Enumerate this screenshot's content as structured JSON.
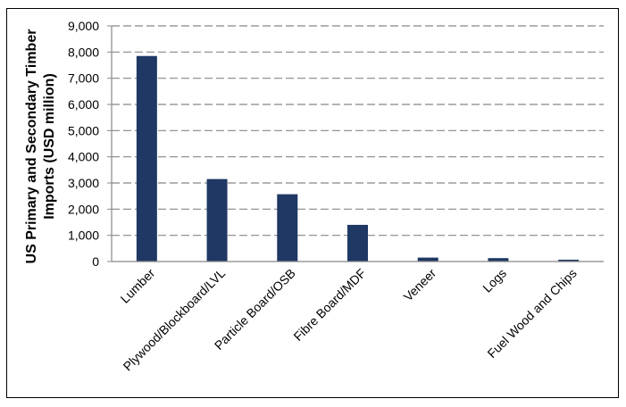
{
  "chart_data": {
    "type": "bar",
    "title": "",
    "xlabel": "",
    "ylabel_line1": "US Primary and Secondary Timber",
    "ylabel_line2": "Imports (USD million)",
    "categories": [
      "Lumber",
      "Plywood/Blockboard/LVL",
      "Particle Board/OSB",
      "Fibre Board/MDF",
      "Veneer",
      "Logs",
      "Fuel Wood and Chips"
    ],
    "values": [
      7850,
      3150,
      2570,
      1400,
      150,
      130,
      70
    ],
    "ylim": [
      0,
      9000
    ],
    "yticks": [
      "0",
      "1,000",
      "2,000",
      "3,000",
      "4,000",
      "5,000",
      "6,000",
      "7,000",
      "8,000",
      "9,000"
    ],
    "grid": true,
    "bar_color": "#1f3864",
    "grid_color": "#888888"
  }
}
